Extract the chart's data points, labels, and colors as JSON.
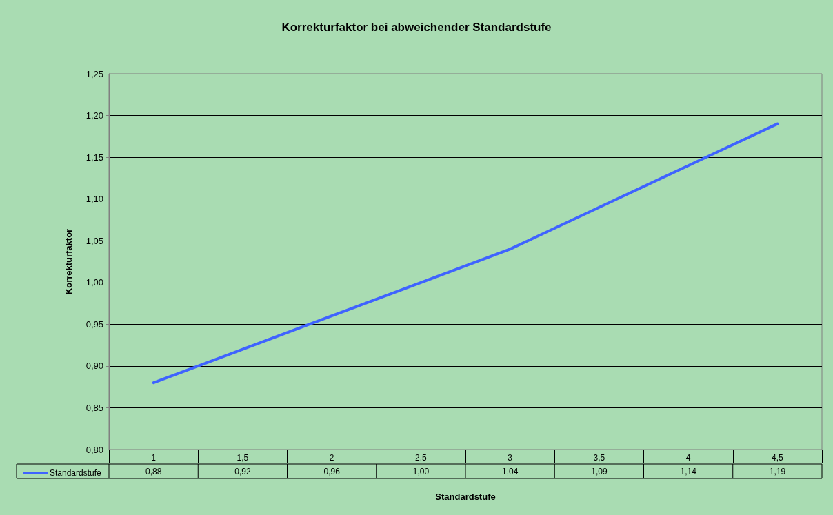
{
  "chart_data": {
    "type": "line",
    "title": "Korrekturfaktor bei abweichender Standardstufe",
    "xlabel": "Standardstufe",
    "ylabel": "Korrekturfaktor",
    "categories": [
      "1",
      "1,5",
      "2",
      "2,5",
      "3",
      "3,5",
      "4",
      "4,5"
    ],
    "series": [
      {
        "name": "Standardstufe",
        "color": "#3f63ff",
        "values": [
          0.88,
          0.92,
          0.96,
          1.0,
          1.04,
          1.09,
          1.14,
          1.19
        ],
        "value_labels": [
          "0,88",
          "0,92",
          "0,96",
          "1,00",
          "1,04",
          "1,09",
          "1,14",
          "1,19"
        ]
      }
    ],
    "ylim": [
      0.8,
      1.25
    ],
    "yticks": [
      {
        "value": 0.8,
        "label": "0,80"
      },
      {
        "value": 0.85,
        "label": "0,85"
      },
      {
        "value": 0.9,
        "label": "0,90"
      },
      {
        "value": 0.95,
        "label": "0,95"
      },
      {
        "value": 1.0,
        "label": "1,00"
      },
      {
        "value": 1.05,
        "label": "1,05"
      },
      {
        "value": 1.1,
        "label": "1,10"
      },
      {
        "value": 1.15,
        "label": "1,15"
      },
      {
        "value": 1.2,
        "label": "1,20"
      },
      {
        "value": 1.25,
        "label": "1,25"
      }
    ],
    "grid": "y",
    "legend": "bottom left",
    "marker": "none",
    "line_style": "solid"
  }
}
